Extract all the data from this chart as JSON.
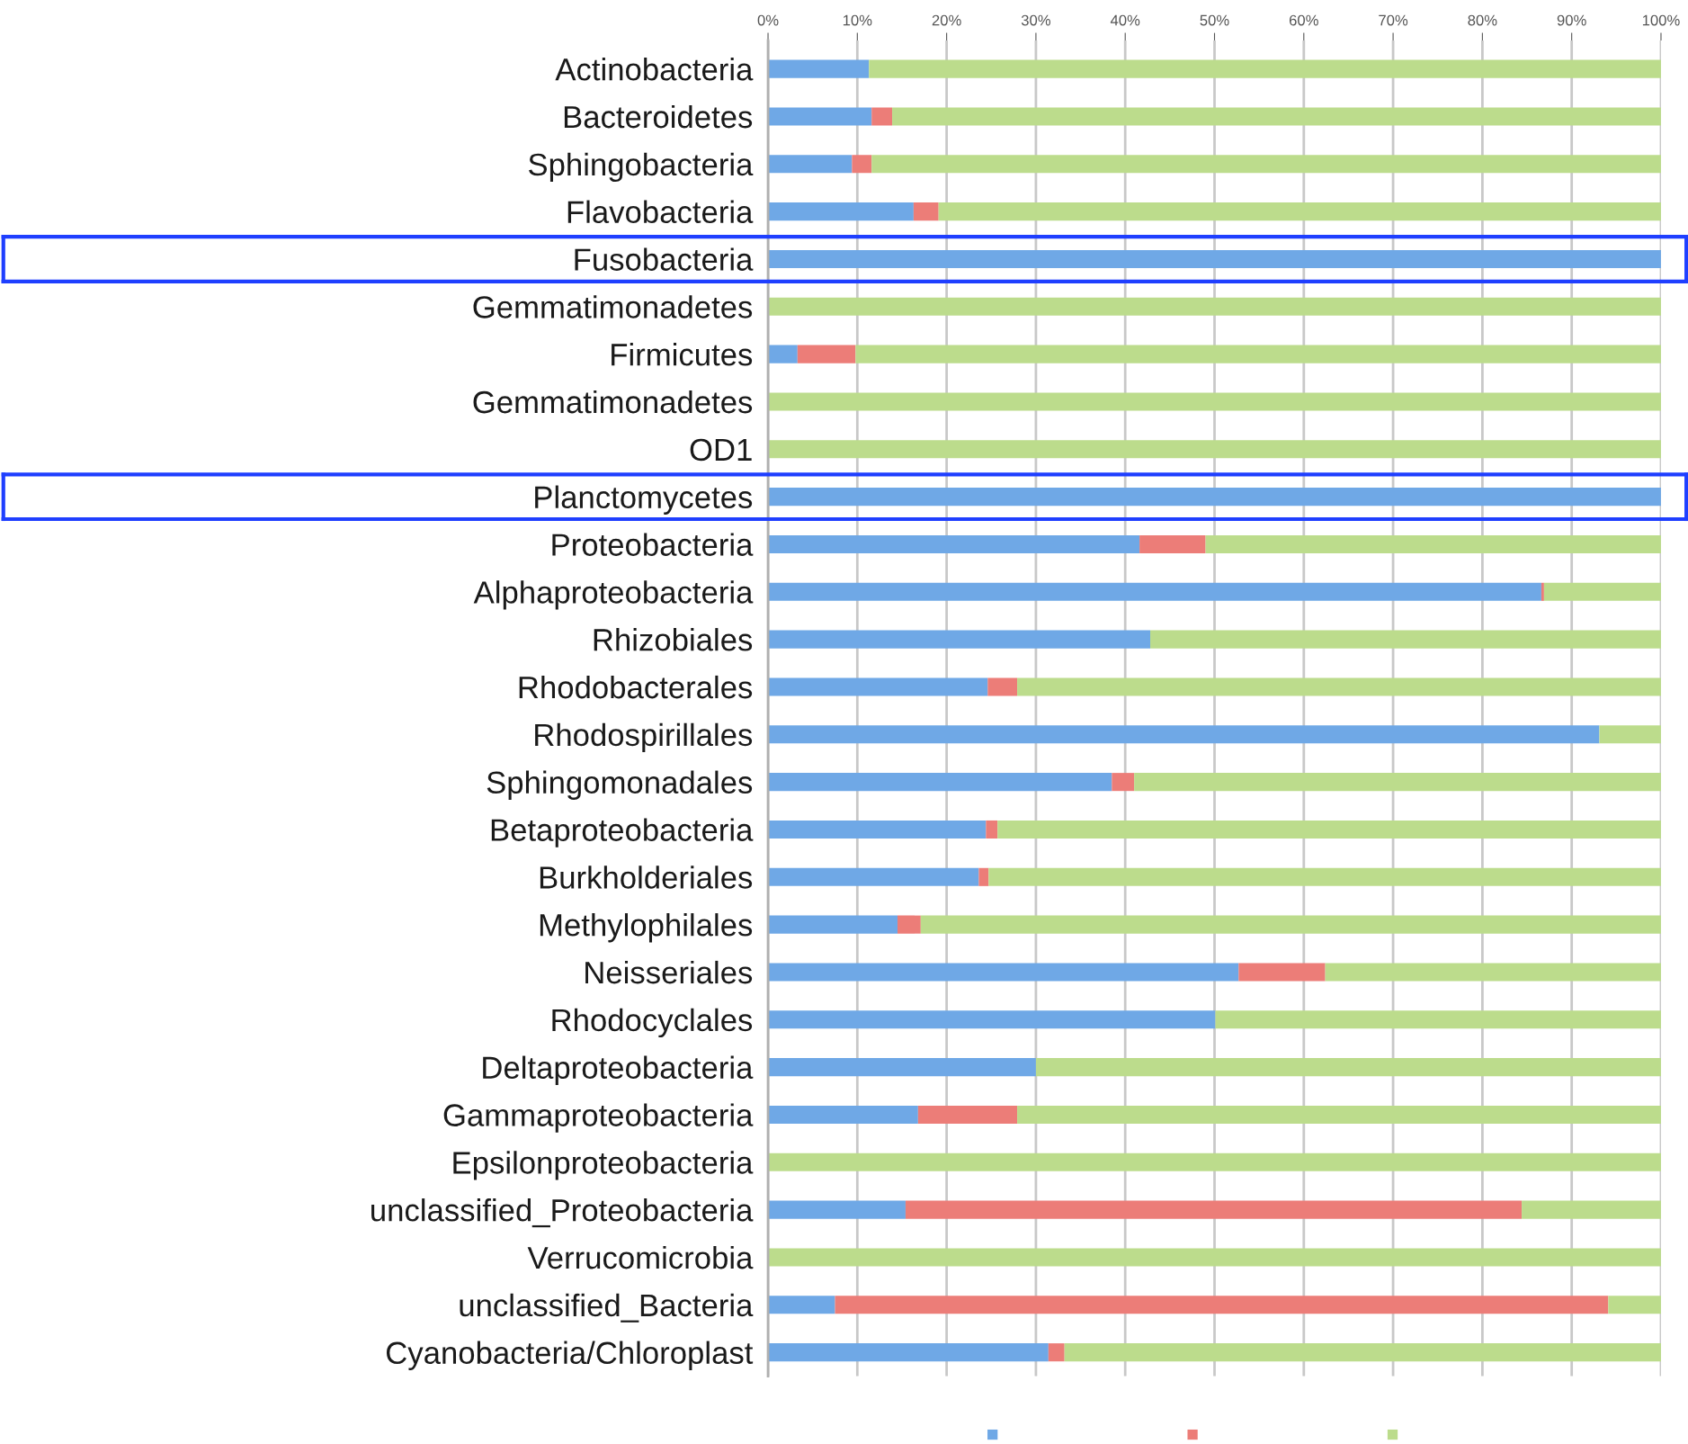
{
  "chart_data": {
    "type": "bar",
    "orientation": "horizontal",
    "stacked": true,
    "categories": [
      "Actinobacteria",
      "Bacteroidetes",
      "Sphingobacteria",
      "Flavobacteria",
      "Fusobacteria",
      "Gemmatimonadetes",
      "Firmicutes",
      "Gemmatimonadetes",
      "OD1",
      "Planctomycetes",
      "Proteobacteria",
      "Alphaproteobacteria",
      "Rhizobiales",
      "Rhodobacterales",
      "Rhodospirillales",
      "Sphingomonadales",
      "Betaproteobacteria",
      "Burkholderiales",
      "Methylophilales",
      "Neisseriales",
      "Rhodocyclales",
      "Deltaproteobacteria",
      "Gammaproteobacteria",
      "Epsilonproteobacteria",
      "unclassified_Proteobacteria",
      "Verrucomicrobia",
      "unclassified_Bacteria",
      "Cyanobacteria/Chloroplast"
    ],
    "series": [
      {
        "color": "#6fa8e6",
        "values": [
          11.3,
          11.6,
          9.4,
          16.3,
          100,
          0,
          3.3,
          0,
          0,
          100,
          41.6,
          86.6,
          42.8,
          24.6,
          93.1,
          38.5,
          24.4,
          23.6,
          14.5,
          52.7,
          50.1,
          30.0,
          16.8,
          0,
          15.4,
          0,
          7.5,
          31.4
        ]
      },
      {
        "color": "#ec7d78",
        "values": [
          0,
          2.3,
          2.2,
          2.8,
          0,
          0,
          6.5,
          0,
          0,
          0,
          7.4,
          0.3,
          0,
          3.3,
          0,
          2.5,
          1.3,
          1.1,
          2.6,
          9.7,
          0,
          0,
          11.1,
          0,
          69.0,
          0,
          86.6,
          1.8
        ]
      },
      {
        "color": "#bcdc8c",
        "values": [
          88.7,
          86.1,
          88.4,
          80.9,
          0,
          100,
          90.2,
          100,
          100,
          0,
          51.0,
          13.1,
          57.2,
          72.1,
          6.9,
          59.0,
          74.3,
          75.3,
          82.9,
          37.6,
          49.9,
          70.0,
          72.1,
          100,
          15.6,
          100,
          5.9,
          66.8
        ]
      }
    ],
    "xlim": [
      0,
      100
    ],
    "xticks": [
      {
        "value": 0,
        "label": "0%"
      },
      {
        "value": 10,
        "label": "10%"
      },
      {
        "value": 20,
        "label": "20%"
      },
      {
        "value": 30,
        "label": "30%"
      },
      {
        "value": 40,
        "label": "40%"
      },
      {
        "value": 50,
        "label": "50%"
      },
      {
        "value": 60,
        "label": "60%"
      },
      {
        "value": 70,
        "label": "70%"
      },
      {
        "value": 80,
        "label": "80%"
      },
      {
        "value": 90,
        "label": "90%"
      },
      {
        "value": 100,
        "label": "100%"
      }
    ],
    "grid": "x"
  }
}
